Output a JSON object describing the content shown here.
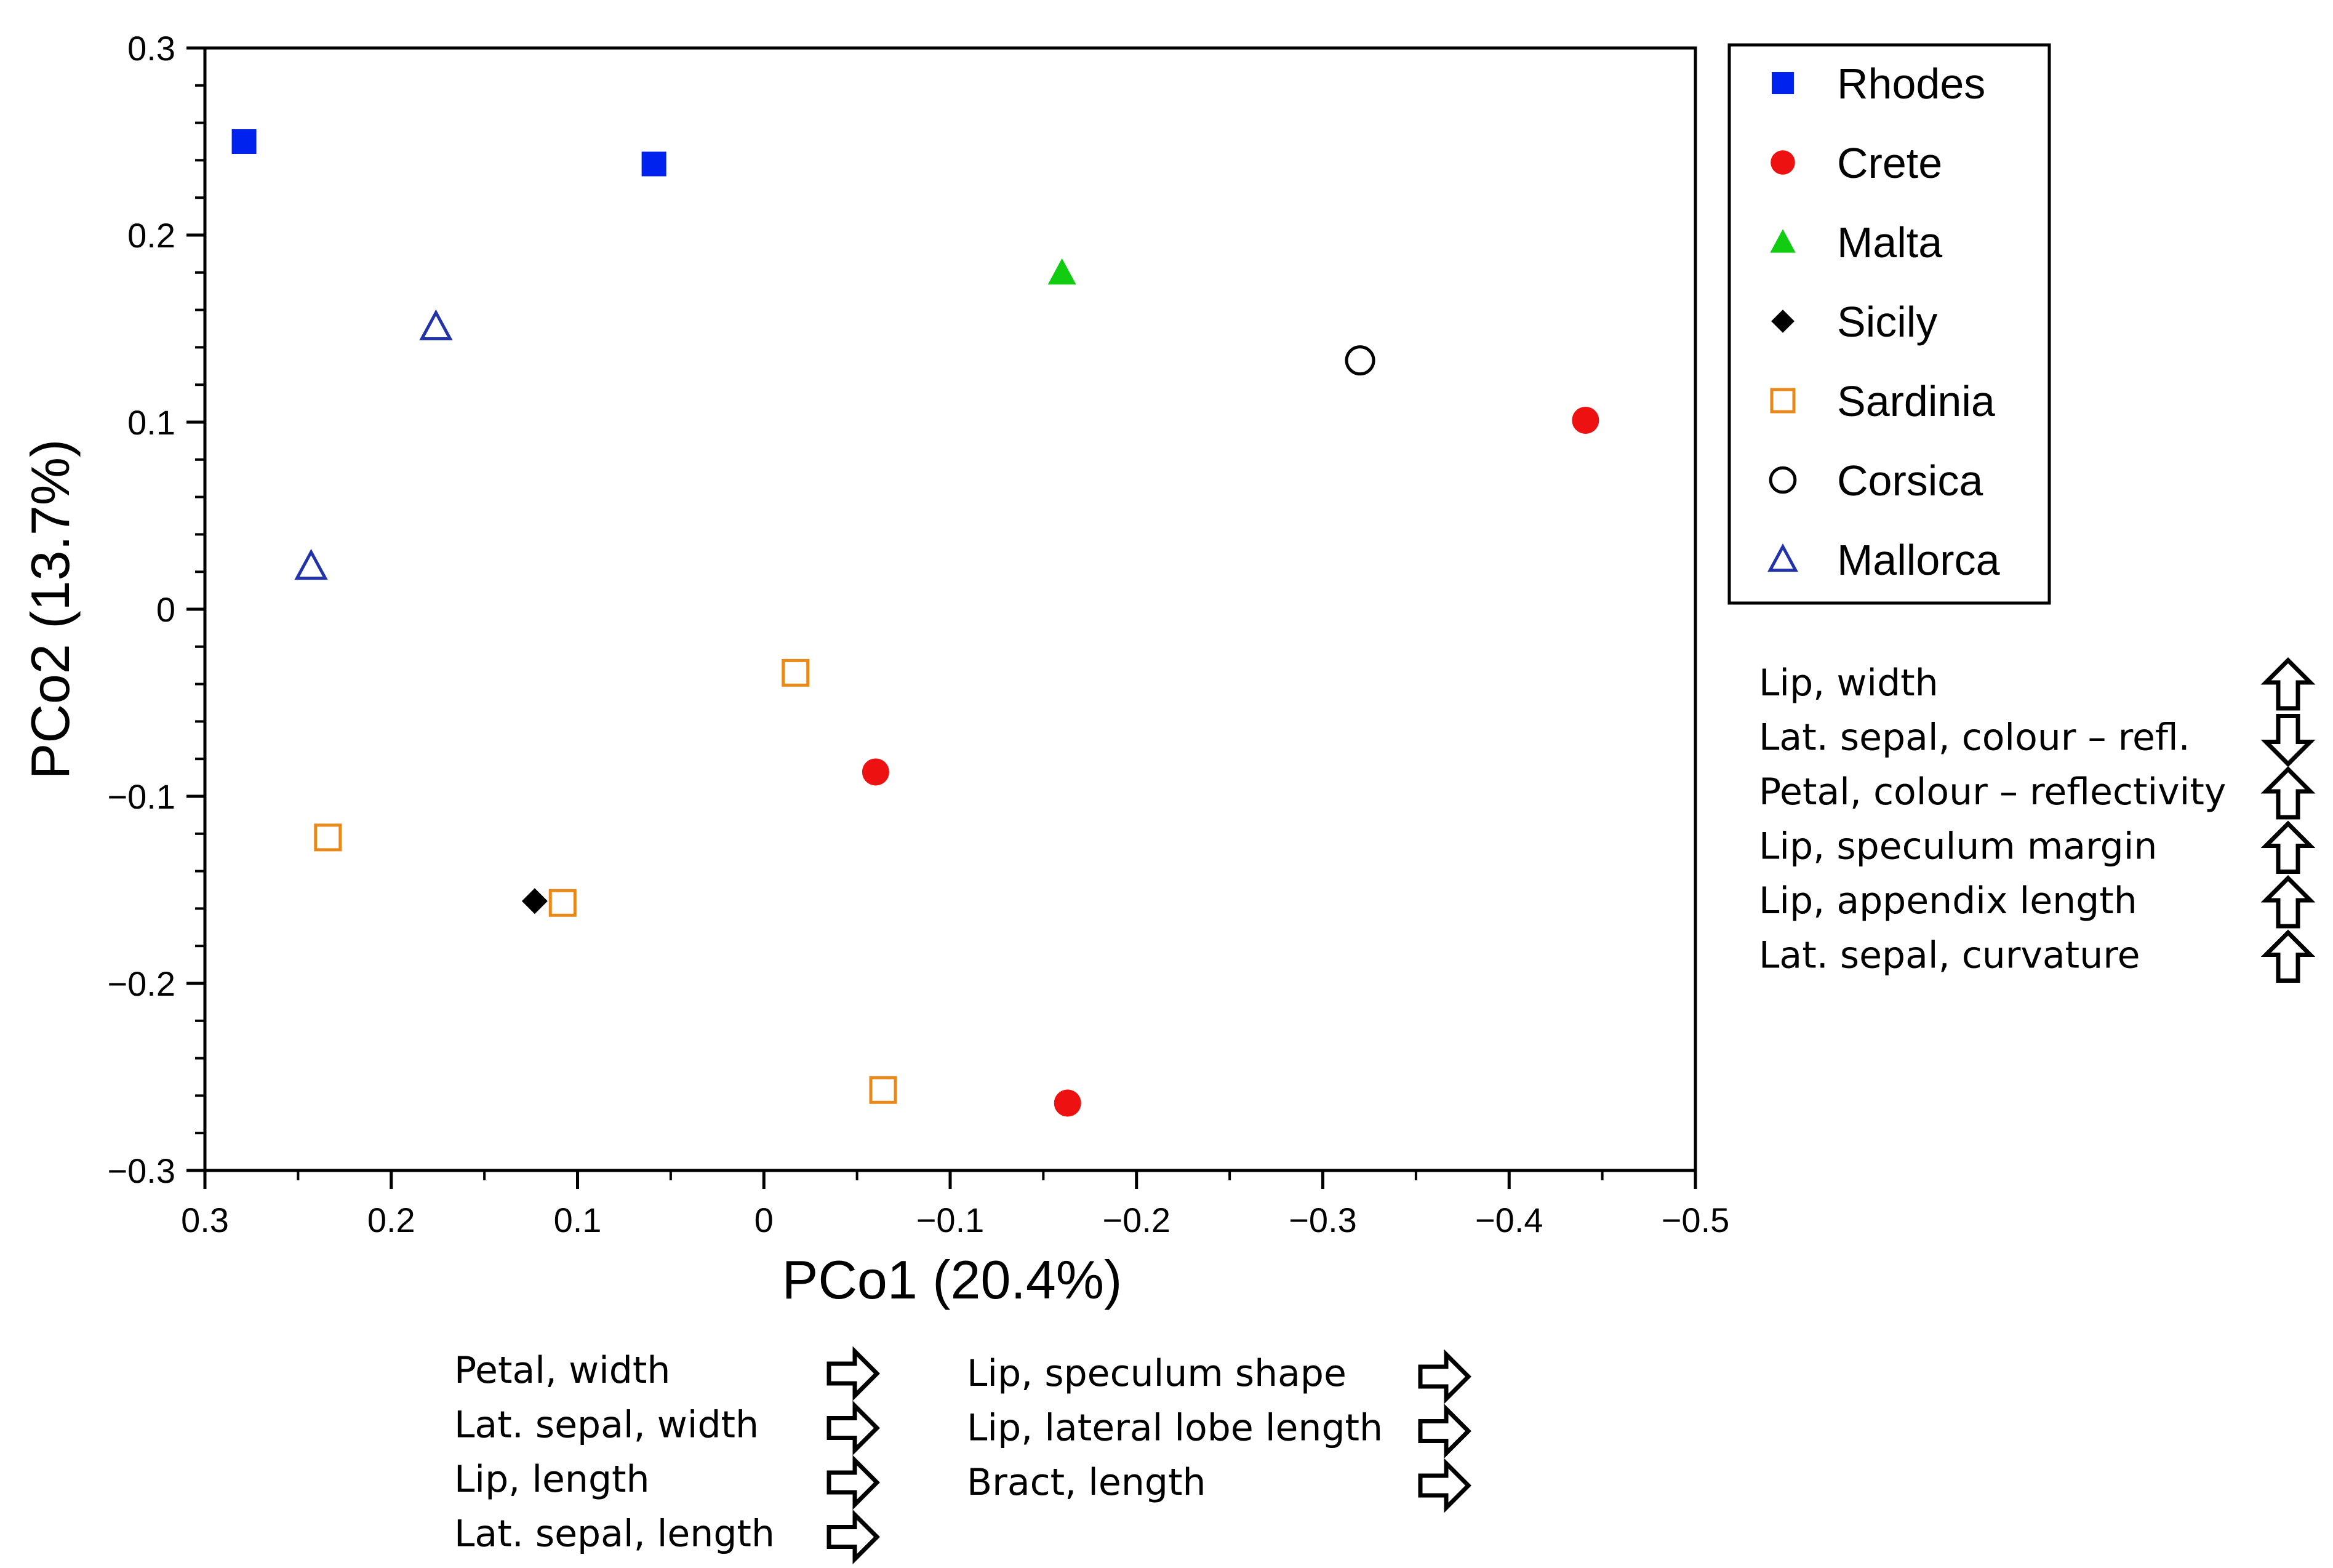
{
  "chart_data": {
    "type": "scatter",
    "xlabel": "PCo1 (20.4%)",
    "ylabel": "PCo2 (13.7%)",
    "xlim": [
      0.3,
      -0.5
    ],
    "ylim": [
      -0.3,
      0.3
    ],
    "x_ticks": [
      0.3,
      0.2,
      0.1,
      0,
      -0.1,
      -0.2,
      -0.3,
      -0.4,
      -0.5
    ],
    "x_tick_labels": [
      "0.3",
      "0.2",
      "0.1",
      "0",
      "−0.1",
      "−0.2",
      "−0.3",
      "−0.4",
      "−0.5"
    ],
    "y_ticks": [
      0.3,
      0.2,
      0.1,
      0,
      -0.1,
      -0.2,
      -0.3
    ],
    "y_tick_labels": [
      "0.3",
      "0.2",
      "0.1",
      "0",
      "−0.1",
      "−0.2",
      "−0.3"
    ],
    "legend_position": "outside-right",
    "series": [
      {
        "name": "Rhodes",
        "marker": "square-filled",
        "color": "#0022ee",
        "points": [
          [
            0.279,
            0.25
          ],
          [
            0.059,
            0.238
          ]
        ]
      },
      {
        "name": "Crete",
        "marker": "circle-filled",
        "color": "#ee1111",
        "points": [
          [
            -0.441,
            0.101
          ],
          [
            -0.06,
            -0.087
          ],
          [
            -0.163,
            -0.264
          ]
        ]
      },
      {
        "name": "Malta",
        "marker": "triangle-filled",
        "color": "#11cc11",
        "points": [
          [
            -0.16,
            0.18
          ]
        ]
      },
      {
        "name": "Sicily",
        "marker": "diamond-filled",
        "color": "#000000",
        "points": [
          [
            0.123,
            -0.156
          ]
        ]
      },
      {
        "name": "Sardinia",
        "marker": "square-open",
        "color": "#e8891a",
        "points": [
          [
            -0.017,
            -0.034
          ],
          [
            0.234,
            -0.122
          ],
          [
            0.108,
            -0.157
          ],
          [
            -0.064,
            -0.257
          ]
        ]
      },
      {
        "name": "Corsica",
        "marker": "circle-open",
        "color": "#000000",
        "points": [
          [
            -0.32,
            0.133
          ]
        ]
      },
      {
        "name": "Mallorca",
        "marker": "triangle-open",
        "color": "#2233aa",
        "points": [
          [
            0.176,
            0.151
          ],
          [
            0.243,
            0.023
          ]
        ]
      }
    ],
    "pco2_vectors": [
      {
        "label": "Lip, width",
        "direction": "up"
      },
      {
        "label": "Lat. sepal, colour – refl.",
        "direction": "down"
      },
      {
        "label": "Petal, colour – reflectivity",
        "direction": "up"
      },
      {
        "label": "Lip, speculum margin",
        "direction": "up"
      },
      {
        "label": "Lip, appendix length",
        "direction": "up"
      },
      {
        "label": "Lat. sepal, curvature",
        "direction": "up"
      }
    ],
    "pco1_vectors_left": [
      {
        "label": "Petal, width",
        "direction": "right"
      },
      {
        "label": "Lat. sepal, width",
        "direction": "right"
      },
      {
        "label": "Lip, length",
        "direction": "right"
      },
      {
        "label": "Lat. sepal, length",
        "direction": "right"
      }
    ],
    "pco1_vectors_right": [
      {
        "label": "Lip, speculum shape",
        "direction": "right"
      },
      {
        "label": "Lip, lateral lobe length",
        "direction": "right"
      },
      {
        "label": "Bract, length",
        "direction": "right"
      }
    ]
  }
}
